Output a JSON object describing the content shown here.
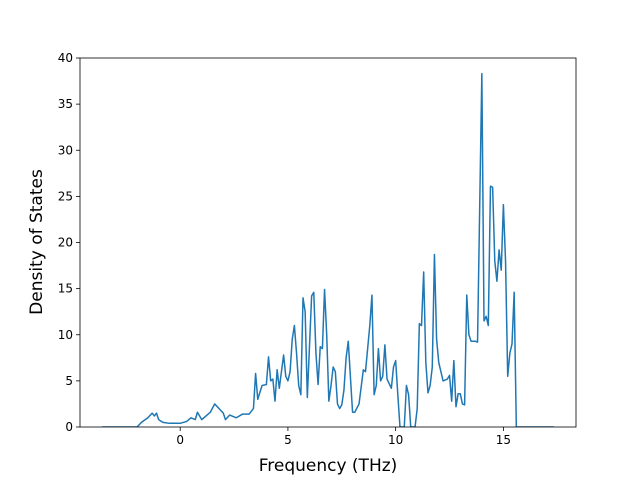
{
  "chart_data": {
    "type": "line",
    "xlabel": "Frequency (THz)",
    "ylabel": "Density of States",
    "color": "#1f77b4",
    "x": [
      -3.63,
      -2.0,
      -1.8,
      -1.5,
      -1.3,
      -1.2,
      -1.1,
      -1.0,
      -0.8,
      -0.5,
      0.0,
      0.3,
      0.5,
      0.7,
      0.8,
      1.0,
      1.2,
      1.4,
      1.6,
      1.8,
      2.0,
      2.1,
      2.3,
      2.6,
      2.9,
      3.2,
      3.4,
      3.5,
      3.6,
      3.8,
      4.0,
      4.1,
      4.2,
      4.3,
      4.4,
      4.5,
      4.6,
      4.8,
      4.9,
      5.0,
      5.1,
      5.2,
      5.3,
      5.4,
      5.5,
      5.6,
      5.7,
      5.8,
      5.9,
      6.1,
      6.2,
      6.3,
      6.4,
      6.5,
      6.6,
      6.7,
      6.8,
      6.9,
      7.0,
      7.1,
      7.2,
      7.3,
      7.4,
      7.5,
      7.6,
      7.7,
      7.8,
      8.0,
      8.1,
      8.3,
      8.5,
      8.6,
      8.8,
      8.9,
      9.0,
      9.1,
      9.2,
      9.3,
      9.4,
      9.5,
      9.6,
      9.8,
      9.9,
      10.0,
      10.1,
      10.2,
      10.4,
      10.5,
      10.6,
      10.7,
      10.9,
      11.0,
      11.1,
      11.2,
      11.3,
      11.4,
      11.5,
      11.6,
      11.7,
      11.8,
      11.9,
      12.0,
      12.2,
      12.4,
      12.5,
      12.6,
      12.7,
      12.8,
      12.9,
      13.0,
      13.1,
      13.2,
      13.3,
      13.4,
      13.5,
      13.7,
      13.8,
      14.0,
      14.1,
      14.2,
      14.3,
      14.4,
      14.5,
      14.6,
      14.7,
      14.8,
      14.9,
      15.0,
      15.1,
      15.2,
      15.3,
      15.4,
      15.5,
      15.6,
      17.35
    ],
    "values": [
      0,
      0,
      0.5,
      1.0,
      1.5,
      1.2,
      1.5,
      0.8,
      0.5,
      0.4,
      0.4,
      0.6,
      1.0,
      0.8,
      1.6,
      0.8,
      1.2,
      1.6,
      2.5,
      2.0,
      1.5,
      0.8,
      1.3,
      1.0,
      1.4,
      1.4,
      2.0,
      5.8,
      3.0,
      4.5,
      4.6,
      7.6,
      5.0,
      5.2,
      2.8,
      6.2,
      4.2,
      7.8,
      5.5,
      5.0,
      6.0,
      9.5,
      11.0,
      8.0,
      4.5,
      3.5,
      14.0,
      12.5,
      3.2,
      14.2,
      14.6,
      8.0,
      4.6,
      8.7,
      8.5,
      14.9,
      10.0,
      2.8,
      4.5,
      6.5,
      6.0,
      2.5,
      2.0,
      2.4,
      4.0,
      7.5,
      9.3,
      1.6,
      1.6,
      2.5,
      6.2,
      6.0,
      11.0,
      14.3,
      3.5,
      4.5,
      8.5,
      5.0,
      5.5,
      8.9,
      5.2,
      4.2,
      6.5,
      7.2,
      3.5,
      0,
      0,
      4.5,
      3.5,
      0,
      0,
      2.0,
      11.2,
      11.0,
      16.8,
      7.0,
      3.7,
      4.5,
      6.5,
      18.7,
      9.5,
      7.0,
      5.0,
      5.2,
      5.6,
      2.8,
      7.2,
      2.2,
      3.6,
      3.6,
      2.5,
      2.4,
      14.3,
      10.0,
      9.3,
      9.3,
      9.2,
      38.3,
      11.5,
      12.0,
      11.0,
      26.1,
      26.0,
      18.0,
      15.8,
      19.2,
      17.0,
      24.1,
      18.0,
      5.5,
      8.0,
      9.0,
      14.6,
      0,
      0
    ],
    "xlim": [
      -4.65,
      18.37
    ],
    "xticks": [
      0,
      5,
      10,
      15
    ],
    "ylim": [
      0,
      40
    ],
    "yticks": [
      0,
      5,
      10,
      15,
      20,
      25,
      30,
      35,
      40
    ]
  }
}
